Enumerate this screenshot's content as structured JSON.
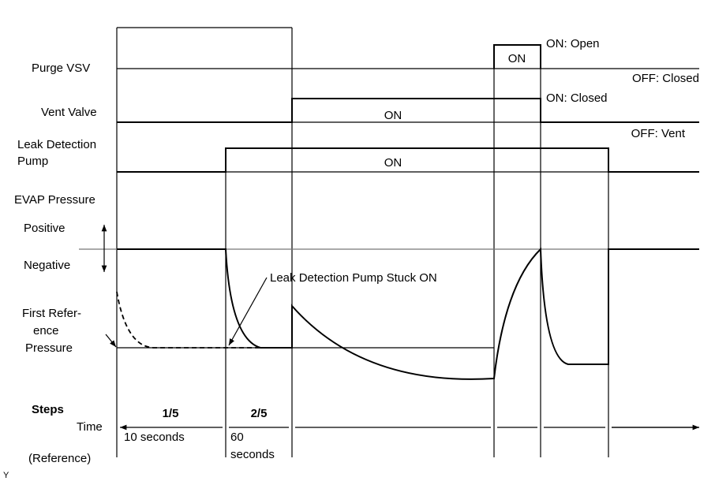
{
  "signals": [
    {
      "label": [
        "Purge VSV"
      ],
      "on": "ON",
      "on_state": "ON: Open",
      "off_state": "OFF: Closed"
    },
    {
      "label": [
        "Vent Valve"
      ],
      "on": "ON",
      "on_state": "ON: Closed",
      "off_state": "OFF: Vent"
    },
    {
      "label": [
        "Leak Detection",
        "Pump"
      ],
      "on": "ON"
    }
  ],
  "pressure": {
    "label": "EVAP Pressure",
    "positive": "Positive",
    "negative": "Negative",
    "reference": [
      "First Refer-",
      "ence",
      "Pressure"
    ],
    "annotation": "Leak Detection Pump Stuck ON"
  },
  "steps": {
    "label": "Steps",
    "time": "Time",
    "reference": "(Reference)",
    "items": [
      {
        "step": "1/5",
        "duration": [
          "10 seconds"
        ]
      },
      {
        "step": "2/5",
        "duration": [
          "60",
          "seconds"
        ]
      }
    ]
  },
  "footer": "Y"
}
